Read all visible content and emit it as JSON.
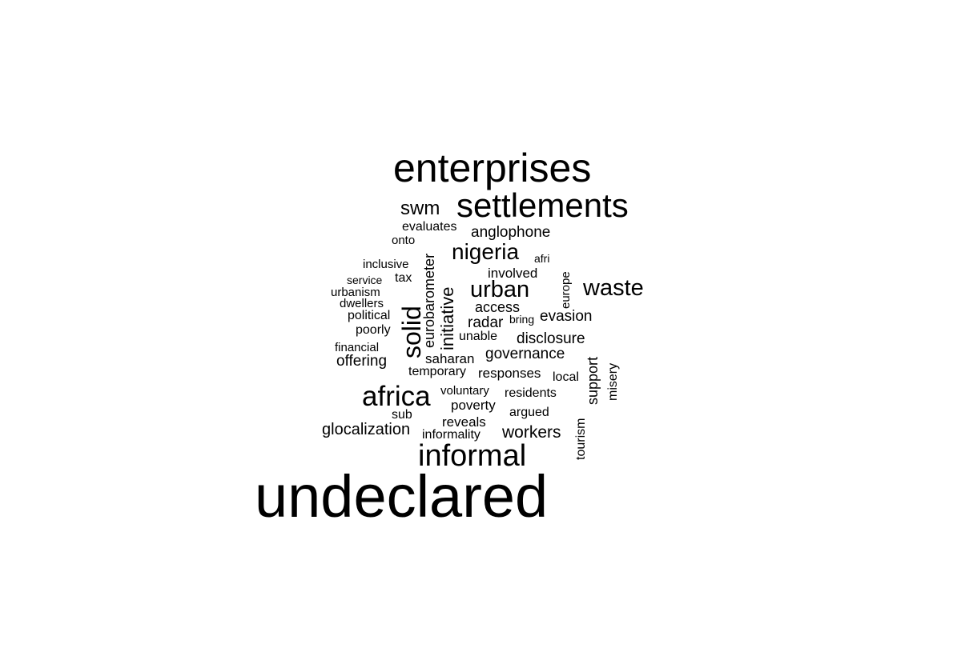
{
  "words": [
    {
      "text": "undeclared"
    },
    {
      "text": "enterprises"
    },
    {
      "text": "settlements"
    },
    {
      "text": "informal"
    },
    {
      "text": "africa"
    },
    {
      "text": "solid"
    },
    {
      "text": "waste"
    },
    {
      "text": "urban"
    },
    {
      "text": "nigeria"
    },
    {
      "text": "swm"
    },
    {
      "text": "initiative"
    },
    {
      "text": "workers"
    },
    {
      "text": "glocalization"
    },
    {
      "text": "anglophone"
    },
    {
      "text": "evasion"
    },
    {
      "text": "disclosure"
    },
    {
      "text": "governance"
    },
    {
      "text": "eurobarometer"
    },
    {
      "text": "offering"
    },
    {
      "text": "access"
    },
    {
      "text": "radar"
    },
    {
      "text": "support"
    },
    {
      "text": "involved"
    },
    {
      "text": "saharan"
    },
    {
      "text": "responses"
    },
    {
      "text": "poverty"
    },
    {
      "text": "reveals"
    },
    {
      "text": "evaluates"
    },
    {
      "text": "tourism"
    },
    {
      "text": "misery"
    },
    {
      "text": "europe"
    },
    {
      "text": "temporary"
    },
    {
      "text": "residents"
    },
    {
      "text": "argued"
    },
    {
      "text": "informality"
    },
    {
      "text": "sub"
    },
    {
      "text": "unable"
    },
    {
      "text": "local"
    },
    {
      "text": "voluntary"
    },
    {
      "text": "financial"
    },
    {
      "text": "poorly"
    },
    {
      "text": "political"
    },
    {
      "text": "dwellers"
    },
    {
      "text": "urbanism"
    },
    {
      "text": "service"
    },
    {
      "text": "tax"
    },
    {
      "text": "inclusive"
    },
    {
      "text": "onto"
    },
    {
      "text": "afri"
    },
    {
      "text": "bring"
    }
  ]
}
